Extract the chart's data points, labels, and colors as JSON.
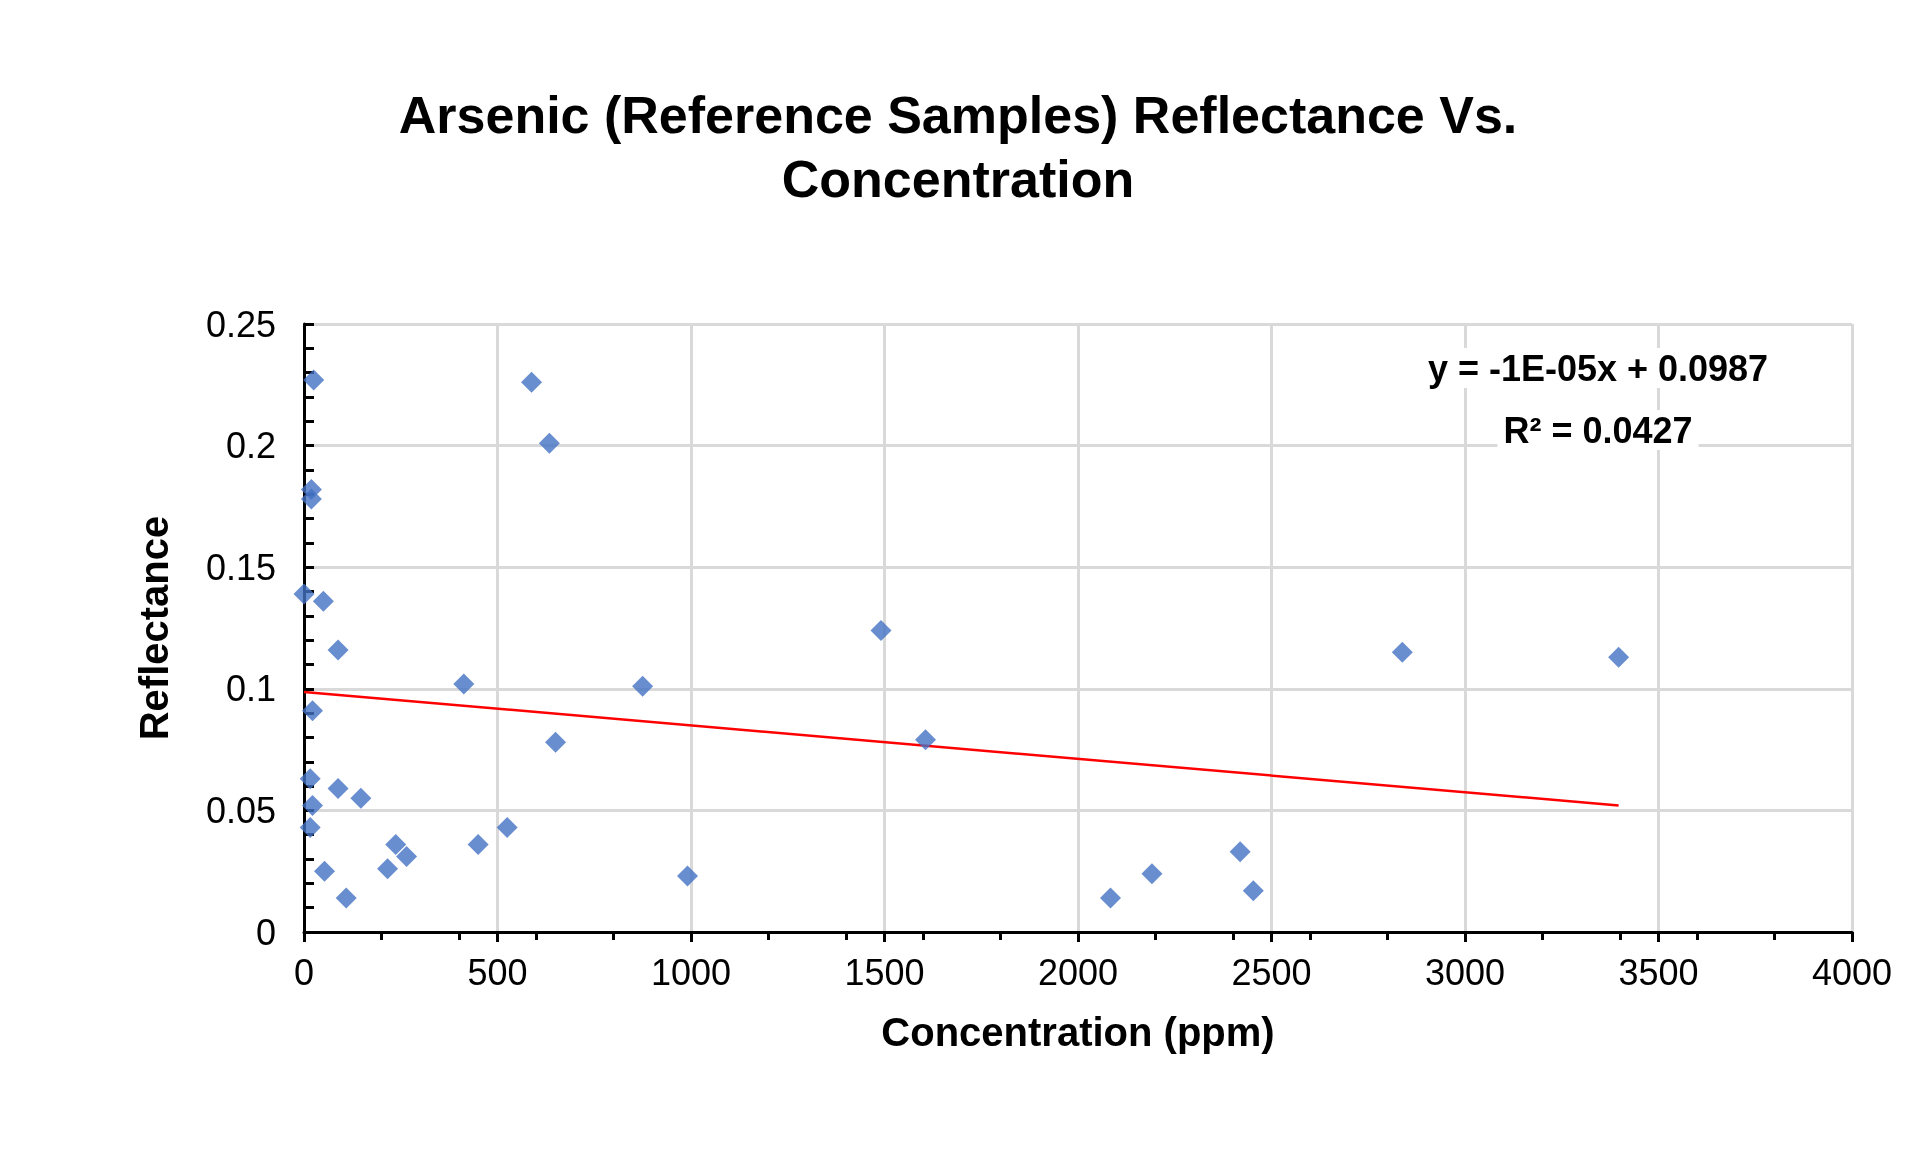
{
  "chart_data": {
    "type": "scatter",
    "title": "Arsenic (Reference Samples) Reflectance Vs.\nConcentration",
    "xlabel": "Concentration (ppm)",
    "ylabel": "Reflectance",
    "series": [
      {
        "color": "#4472c4",
        "marker": "diamond",
        "x": [
          25,
          588,
          634,
          19,
          19,
          0,
          50,
          88,
          1491,
          413,
          875,
          22,
          650,
          1606,
          2838,
          3397,
          16,
          88,
          147,
          22,
          16,
          525,
          237,
          265,
          450,
          53,
          216,
          109,
          991,
          2084,
          2191,
          2419,
          2453
        ],
        "values": [
          0.227,
          0.226,
          0.201,
          0.182,
          0.178,
          0.139,
          0.136,
          0.116,
          0.124,
          0.102,
          0.101,
          0.091,
          0.078,
          0.079,
          0.115,
          0.113,
          0.063,
          0.059,
          0.055,
          0.052,
          0.043,
          0.043,
          0.036,
          0.031,
          0.036,
          0.025,
          0.026,
          0.014,
          0.023,
          0.014,
          0.024,
          0.033,
          0.017
        ]
      },
      {
        "type": "line",
        "color": "#ff0000",
        "marker": "none",
        "line_style": "solid",
        "x": [
          0,
          3397
        ],
        "values": [
          0.0987,
          0.052
        ]
      }
    ],
    "annotations": [
      "y = -1E-05x + 0.0987",
      "R² = 0.0427"
    ],
    "xlim": [
      0,
      4000
    ],
    "xticks": [
      0,
      500,
      1000,
      1500,
      2000,
      2500,
      3000,
      3500,
      4000
    ],
    "ylim": [
      0,
      0.25
    ],
    "yticks": [
      0,
      0.05,
      0.1,
      0.15,
      0.2,
      0.25
    ],
    "grid": true
  }
}
